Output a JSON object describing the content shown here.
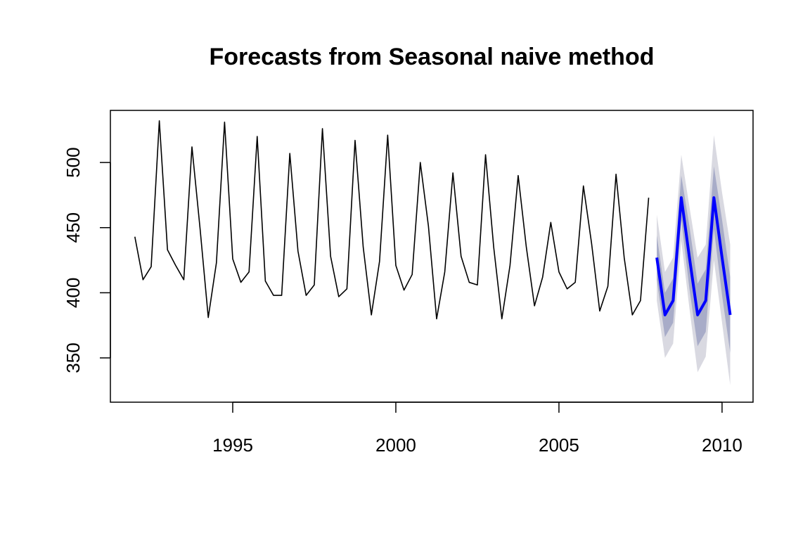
{
  "chart_data": {
    "type": "line",
    "title": "Forecasts from Seasonal naive method",
    "xlabel": "",
    "ylabel": "",
    "xlim": [
      1991.25,
      2010.95
    ],
    "ylim": [
      316,
      540
    ],
    "x_ticks": [
      1995,
      2000,
      2005,
      2010
    ],
    "y_ticks": [
      350,
      400,
      450,
      500
    ],
    "grid": false,
    "legend": "none",
    "colors": {
      "history": "#000000",
      "forecast": "#0000ff",
      "band80": "#a8acc8",
      "band95": "#d9d9e1"
    },
    "history": {
      "start": 1992,
      "frequency": 4,
      "values": [
        443,
        410,
        420,
        532,
        433,
        421,
        410,
        512,
        449,
        381,
        423,
        531,
        426,
        408,
        416,
        520,
        409,
        398,
        398,
        507,
        432,
        398,
        406,
        526,
        428,
        397,
        403,
        517,
        435,
        383,
        424,
        521,
        421,
        402,
        414,
        500,
        451,
        380,
        416,
        492,
        428,
        408,
        406,
        506,
        435,
        380,
        421,
        490,
        435,
        390,
        412,
        454,
        416,
        403,
        408,
        482,
        438,
        386,
        405,
        491,
        427,
        383,
        394,
        473
      ]
    },
    "forecast": {
      "start": 2008,
      "frequency": 4,
      "mean": [
        427,
        383,
        394,
        473,
        427,
        383,
        394,
        473,
        427,
        383
      ],
      "lo80": [
        410,
        366,
        377,
        456,
        403,
        359,
        370,
        449,
        398,
        354
      ],
      "hi80": [
        444,
        400,
        411,
        490,
        451,
        407,
        418,
        497,
        456,
        412
      ],
      "lo95": [
        394,
        350,
        361,
        440,
        388,
        339,
        351,
        425,
        377,
        329
      ],
      "hi95": [
        460,
        416,
        427,
        506,
        466,
        427,
        437,
        521,
        477,
        437
      ]
    }
  }
}
